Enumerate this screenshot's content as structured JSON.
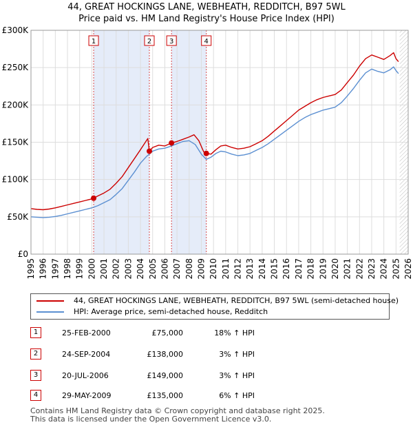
{
  "chart_data": {
    "type": "line",
    "title": "44, GREAT HOCKINGS LANE, WEBHEATH, REDDITCH, B97 5WL",
    "subtitle": "Price paid vs. HM Land Registry's House Price Index (HPI)",
    "xlabel": "",
    "ylabel": "",
    "xlim": [
      1995,
      2026
    ],
    "ylim": [
      0,
      300000
    ],
    "grid": true,
    "x_ticks": [
      "1995",
      "1996",
      "1997",
      "1998",
      "1999",
      "2000",
      "2001",
      "2002",
      "2003",
      "2004",
      "2005",
      "2006",
      "2007",
      "2008",
      "2009",
      "2010",
      "2011",
      "2012",
      "2013",
      "2014",
      "2015",
      "2016",
      "2017",
      "2018",
      "2019",
      "2020",
      "2021",
      "2022",
      "2023",
      "2024",
      "2025",
      "2026"
    ],
    "y_ticks": [
      "£0",
      "£50K",
      "£100K",
      "£150K",
      "£200K",
      "£250K",
      "£300K"
    ],
    "y_tick_values": [
      0,
      50000,
      100000,
      150000,
      200000,
      250000,
      300000
    ],
    "shaded_ranges": [
      [
        2000.15,
        2004.73
      ],
      [
        2006.55,
        2009.41
      ]
    ],
    "future_hatch_from": 2025.3,
    "series": [
      {
        "name": "44, GREAT HOCKINGS LANE, WEBHEATH, REDDITCH, B97 5WL (semi-detached house)",
        "color": "#cc0000",
        "points": [
          [
            1995.0,
            61000
          ],
          [
            1995.5,
            60000
          ],
          [
            1996.0,
            59500
          ],
          [
            1996.5,
            60500
          ],
          [
            1997.0,
            62000
          ],
          [
            1997.5,
            64000
          ],
          [
            1998.0,
            66000
          ],
          [
            1998.5,
            68000
          ],
          [
            1999.0,
            70000
          ],
          [
            1999.5,
            72000
          ],
          [
            2000.0,
            74000
          ],
          [
            2000.15,
            75000
          ],
          [
            2000.5,
            78000
          ],
          [
            2001.0,
            82000
          ],
          [
            2001.5,
            87000
          ],
          [
            2002.0,
            95000
          ],
          [
            2002.5,
            104000
          ],
          [
            2003.0,
            116000
          ],
          [
            2003.5,
            128000
          ],
          [
            2004.0,
            140000
          ],
          [
            2004.4,
            150000
          ],
          [
            2004.6,
            155000
          ],
          [
            2004.73,
            138000
          ],
          [
            2005.0,
            143000
          ],
          [
            2005.5,
            146000
          ],
          [
            2006.0,
            145000
          ],
          [
            2006.55,
            149000
          ],
          [
            2007.0,
            151000
          ],
          [
            2007.5,
            154000
          ],
          [
            2008.0,
            157000
          ],
          [
            2008.4,
            160000
          ],
          [
            2008.8,
            152000
          ],
          [
            2009.2,
            137000
          ],
          [
            2009.41,
            135000
          ],
          [
            2009.8,
            134000
          ],
          [
            2010.2,
            140000
          ],
          [
            2010.6,
            145000
          ],
          [
            2011.0,
            146000
          ],
          [
            2011.5,
            143000
          ],
          [
            2012.0,
            141000
          ],
          [
            2012.5,
            142000
          ],
          [
            2013.0,
            144000
          ],
          [
            2013.5,
            148000
          ],
          [
            2014.0,
            152000
          ],
          [
            2014.5,
            158000
          ],
          [
            2015.0,
            165000
          ],
          [
            2015.5,
            172000
          ],
          [
            2016.0,
            179000
          ],
          [
            2016.5,
            186000
          ],
          [
            2017.0,
            193000
          ],
          [
            2017.5,
            198000
          ],
          [
            2018.0,
            203000
          ],
          [
            2018.5,
            207000
          ],
          [
            2019.0,
            210000
          ],
          [
            2019.5,
            212000
          ],
          [
            2020.0,
            214000
          ],
          [
            2020.5,
            220000
          ],
          [
            2021.0,
            230000
          ],
          [
            2021.5,
            240000
          ],
          [
            2022.0,
            252000
          ],
          [
            2022.5,
            262000
          ],
          [
            2023.0,
            267000
          ],
          [
            2023.5,
            264000
          ],
          [
            2024.0,
            261000
          ],
          [
            2024.5,
            266000
          ],
          [
            2024.8,
            270000
          ],
          [
            2025.0,
            262000
          ],
          [
            2025.2,
            258000
          ]
        ]
      },
      {
        "name": "HPI: Average price, semi-detached house, Redditch",
        "color": "#5b8fd1",
        "points": [
          [
            1995.0,
            50000
          ],
          [
            1995.5,
            49500
          ],
          [
            1996.0,
            49000
          ],
          [
            1996.5,
            49500
          ],
          [
            1997.0,
            50500
          ],
          [
            1997.5,
            52000
          ],
          [
            1998.0,
            54000
          ],
          [
            1998.5,
            56000
          ],
          [
            1999.0,
            58000
          ],
          [
            1999.5,
            60000
          ],
          [
            2000.0,
            62000
          ],
          [
            2000.5,
            65000
          ],
          [
            2001.0,
            69000
          ],
          [
            2001.5,
            73000
          ],
          [
            2002.0,
            80000
          ],
          [
            2002.5,
            88000
          ],
          [
            2003.0,
            99000
          ],
          [
            2003.5,
            110000
          ],
          [
            2004.0,
            122000
          ],
          [
            2004.5,
            131000
          ],
          [
            2004.73,
            134000
          ],
          [
            2005.0,
            138000
          ],
          [
            2005.5,
            141000
          ],
          [
            2006.0,
            142000
          ],
          [
            2006.55,
            145000
          ],
          [
            2007.0,
            148000
          ],
          [
            2007.5,
            151000
          ],
          [
            2008.0,
            152000
          ],
          [
            2008.5,
            147000
          ],
          [
            2009.0,
            134000
          ],
          [
            2009.41,
            127000
          ],
          [
            2009.8,
            130000
          ],
          [
            2010.2,
            135000
          ],
          [
            2010.6,
            138000
          ],
          [
            2011.0,
            137000
          ],
          [
            2011.5,
            134000
          ],
          [
            2012.0,
            132000
          ],
          [
            2012.5,
            133000
          ],
          [
            2013.0,
            135000
          ],
          [
            2013.5,
            139000
          ],
          [
            2014.0,
            143000
          ],
          [
            2014.5,
            148000
          ],
          [
            2015.0,
            154000
          ],
          [
            2015.5,
            160000
          ],
          [
            2016.0,
            166000
          ],
          [
            2016.5,
            172000
          ],
          [
            2017.0,
            178000
          ],
          [
            2017.5,
            183000
          ],
          [
            2018.0,
            187000
          ],
          [
            2018.5,
            190000
          ],
          [
            2019.0,
            193000
          ],
          [
            2019.5,
            195000
          ],
          [
            2020.0,
            197000
          ],
          [
            2020.5,
            203000
          ],
          [
            2021.0,
            212000
          ],
          [
            2021.5,
            222000
          ],
          [
            2022.0,
            233000
          ],
          [
            2022.5,
            243000
          ],
          [
            2023.0,
            248000
          ],
          [
            2023.5,
            245000
          ],
          [
            2024.0,
            243000
          ],
          [
            2024.5,
            247000
          ],
          [
            2024.8,
            251000
          ],
          [
            2025.0,
            246000
          ],
          [
            2025.2,
            242000
          ]
        ]
      }
    ],
    "sales": [
      {
        "num": "1",
        "x": 2000.15,
        "y": 75000
      },
      {
        "num": "2",
        "x": 2004.73,
        "y": 138000
      },
      {
        "num": "3",
        "x": 2006.55,
        "y": 149000
      },
      {
        "num": "4",
        "x": 2009.41,
        "y": 135000
      }
    ]
  },
  "legend": {
    "red_label": "44, GREAT HOCKINGS LANE, WEBHEATH, REDDITCH, B97 5WL (semi-detached house)",
    "blue_label": "HPI: Average price, semi-detached house, Redditch"
  },
  "sales_table": [
    {
      "num": "1",
      "date": "25-FEB-2000",
      "price": "£75,000",
      "hpi": "18% ↑ HPI"
    },
    {
      "num": "2",
      "date": "24-SEP-2004",
      "price": "£138,000",
      "hpi": "3% ↑ HPI"
    },
    {
      "num": "3",
      "date": "20-JUL-2006",
      "price": "£149,000",
      "hpi": "3% ↑ HPI"
    },
    {
      "num": "4",
      "date": "29-MAY-2009",
      "price": "£135,000",
      "hpi": "6% ↑ HPI"
    }
  ],
  "footer": {
    "line1": "Contains HM Land Registry data © Crown copyright and database right 2025.",
    "line2": "This data is licensed under the Open Government Licence v3.0."
  }
}
